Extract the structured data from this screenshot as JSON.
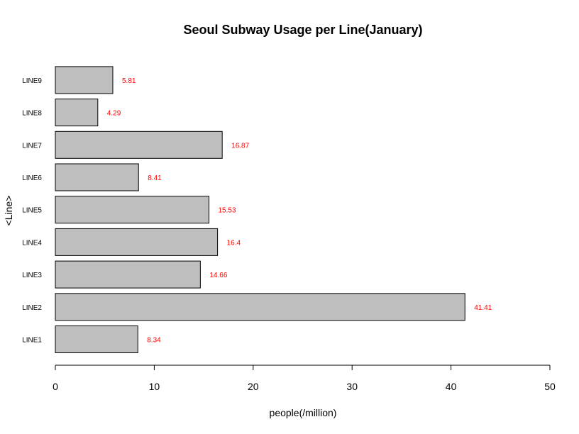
{
  "chart_data": {
    "type": "bar",
    "orientation": "horizontal",
    "title": "Seoul Subway Usage per Line(January)",
    "xlabel": "people(/million)",
    "ylabel": "<Line>",
    "categories": [
      "LINE1",
      "LINE2",
      "LINE3",
      "LINE4",
      "LINE5",
      "LINE6",
      "LINE7",
      "LINE8",
      "LINE9"
    ],
    "values": [
      8.34,
      41.41,
      14.66,
      16.4,
      15.53,
      8.41,
      16.87,
      4.29,
      5.81
    ],
    "data_labels": [
      "8.34",
      "41.41",
      "14.66",
      "16.4",
      "15.53",
      "8.41",
      "16.87",
      "4.29",
      "5.81"
    ],
    "xlim": [
      0,
      50
    ],
    "xticks": [
      0,
      10,
      20,
      30,
      40,
      50
    ],
    "grid": false,
    "bar_color": "#bebebe",
    "label_color": "#ff0000"
  }
}
